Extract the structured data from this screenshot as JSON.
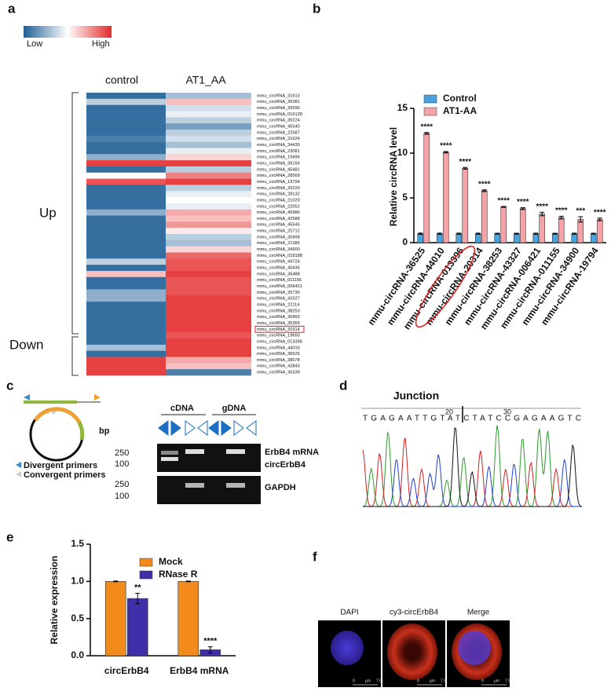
{
  "panel_labels": [
    "a",
    "b",
    "c",
    "d",
    "e",
    "f"
  ],
  "chart_data": [
    {
      "type": "heatmap",
      "columns": [
        "control",
        "AT1_AA"
      ],
      "legend_labels": [
        "Low",
        "High"
      ],
      "colors": [
        "#1f5f95",
        "#ffffff",
        "#e32b2b"
      ],
      "zlim": [
        -2,
        2
      ],
      "row_groups": [
        "Up",
        "Down"
      ],
      "rows": [
        "mmu_circRNA_31613",
        "mmu_circRNA_36381",
        "mmu_circRNA_39296",
        "mmu_circRNA_016128",
        "mmu_circRNA_36224",
        "mmu_circRNA_45540",
        "mmu_circRNA_22587",
        "mmu_circRNA_31624",
        "mmu_circRNA_34430",
        "mmu_circRNA_23081",
        "mmu_circRNA_19496",
        "mmu_circRNA_36156",
        "mmu_circRNA_45481",
        "mmu_circRNA_28569",
        "mmu_circRNA_19794",
        "mmu_circRNA_20220",
        "mmu_circRNA_28132",
        "mmu_circRNA_21020",
        "mmu_circRNA_22052",
        "mmu_circRNA_40986",
        "mmu_circRNA_42588",
        "mmu_circRNA_45545",
        "mmu_circRNA_25712",
        "mmu_circRNA_30498",
        "mmu_circRNA_21385",
        "mmu_circRNA_34900",
        "mmu_circRNA_018188",
        "mmu_circRNA_44724",
        "mmu_circRNA_40436",
        "mmu_circRNA_36488",
        "mmu_circRNA_011155",
        "mmu_circRNA_006421",
        "mmu_circRNA_35730",
        "mmu_circRNA_43327",
        "mmu_circRNA_22114",
        "mmu_circRNA_38253",
        "mmu_circRNA_30493",
        "mmu_circRNA_35359",
        "mmu_circRNA_20314",
        "mmu_circRNA_19650",
        "mmu_circRNA_013396",
        "mmu_circRNA_44010",
        "mmu_circRNA_36525",
        "mmu_circRNA_38078",
        "mmu_circRNA_42843",
        "mmu_circRNA_36339"
      ],
      "values": [
        [
          -1.8,
          -0.6,
          -1.8,
          -1.8,
          -1.8,
          -1.8,
          -1.8,
          -1.6,
          -1.8,
          -1.8,
          -1.0,
          1.8,
          -1.8,
          0.0,
          1.6,
          -1.8,
          -1.8,
          -1.8,
          -1.8,
          -1.0,
          -1.8,
          -1.8,
          -1.8,
          -1.8,
          -1.8,
          -1.8,
          -1.8,
          -0.6,
          -1.8,
          0.6,
          -1.8,
          -1.8,
          -1.0,
          -1.0,
          -1.8,
          -1.8,
          -1.8,
          -1.8,
          -1.8,
          -1.8,
          -1.8,
          -0.8,
          -1.8,
          1.8,
          1.8,
          1.8
        ],
        [
          -0.8,
          0.6,
          -0.4,
          -0.2,
          -0.6,
          -1.2,
          -0.6,
          -0.4,
          -0.8,
          -0.2,
          0.4,
          1.8,
          -0.6,
          1.2,
          1.8,
          -0.6,
          -0.2,
          0.0,
          -0.2,
          0.8,
          0.6,
          1.0,
          0.2,
          -0.6,
          -0.8,
          0.4,
          1.4,
          1.6,
          1.6,
          1.8,
          1.6,
          1.6,
          1.6,
          1.8,
          1.8,
          1.8,
          1.8,
          1.8,
          1.8,
          1.6,
          1.8,
          1.8,
          1.8,
          0.8,
          0.6,
          -1.6
        ]
      ]
    },
    {
      "type": "bar",
      "y_label": "Relative circRNA level",
      "categories": [
        "mmu-circRNA-36525",
        "mmu-circRNA-44010",
        "mmu-circRNA-013396",
        "mmu-circRNA-20314",
        "mmu-circRNA-38253",
        "mmu-circRNA-43327",
        "mmu-circRNA-006421",
        "mmu-circRNA-011155",
        "mmu-circRNA-34900",
        "mmu-circRNA-19794"
      ],
      "series": [
        {
          "name": "Control",
          "color": "#4aa3df",
          "values": [
            1,
            1,
            1,
            1,
            1,
            1,
            1,
            1,
            1,
            1
          ],
          "errors": [
            0.08,
            0.06,
            0.06,
            0.06,
            0.05,
            0.05,
            0.06,
            0.05,
            0.06,
            0.05
          ]
        },
        {
          "name": "AT1-AA",
          "color": "#f4a3a8",
          "values": [
            12.2,
            10.1,
            8.3,
            5.8,
            4.0,
            3.8,
            3.2,
            2.8,
            2.6,
            2.6
          ],
          "errors": [
            0.1,
            0.08,
            0.1,
            0.1,
            0.05,
            0.1,
            0.2,
            0.15,
            0.3,
            0.15
          ],
          "significance": [
            "****",
            "****",
            "****",
            "****",
            "****",
            "****",
            "****",
            "****",
            "***",
            "****"
          ]
        }
      ],
      "ylim": [
        0,
        15
      ],
      "yticks": [
        0,
        5,
        10,
        15
      ]
    },
    {
      "type": "bar",
      "y_label": "Relative expression",
      "categories": [
        "circErbB4",
        "ErbB4 mRNA"
      ],
      "series": [
        {
          "name": "Mock",
          "color": "#f28a1c",
          "values": [
            1.0,
            1.0
          ],
          "errors": [
            0.005,
            0.005
          ]
        },
        {
          "name": "RNase R",
          "color": "#3f2fa8",
          "values": [
            0.77,
            0.08
          ],
          "errors": [
            0.07,
            0.04
          ],
          "significance": [
            "**",
            "****"
          ]
        }
      ],
      "ylim": [
        0,
        1.5
      ],
      "yticks": [
        {
          "value": 0,
          "label": "0.0"
        },
        0.5,
        {
          "value": 1,
          "label": "1.0"
        },
        1.5
      ]
    }
  ],
  "gel": {
    "groups": [
      "cDNA",
      "gDNA"
    ],
    "bp_label": "bp",
    "markers": [
      "250",
      "100",
      "250",
      "100"
    ],
    "bands": [
      "ErbB4 mRNA",
      "circErbB4",
      "GAPDH"
    ],
    "primers": [
      "Divergent primers",
      "Convergent primers"
    ]
  },
  "sequence": {
    "title": "Junction",
    "bases": "TGAGAATTGTATCTATCCGAGAAGTC",
    "positions": [
      "20",
      "30"
    ]
  },
  "imaging": {
    "channels": [
      "DAPI",
      "cy3-circErbB4",
      "Merge"
    ],
    "scale": [
      "0",
      "µm",
      "7.5"
    ]
  }
}
